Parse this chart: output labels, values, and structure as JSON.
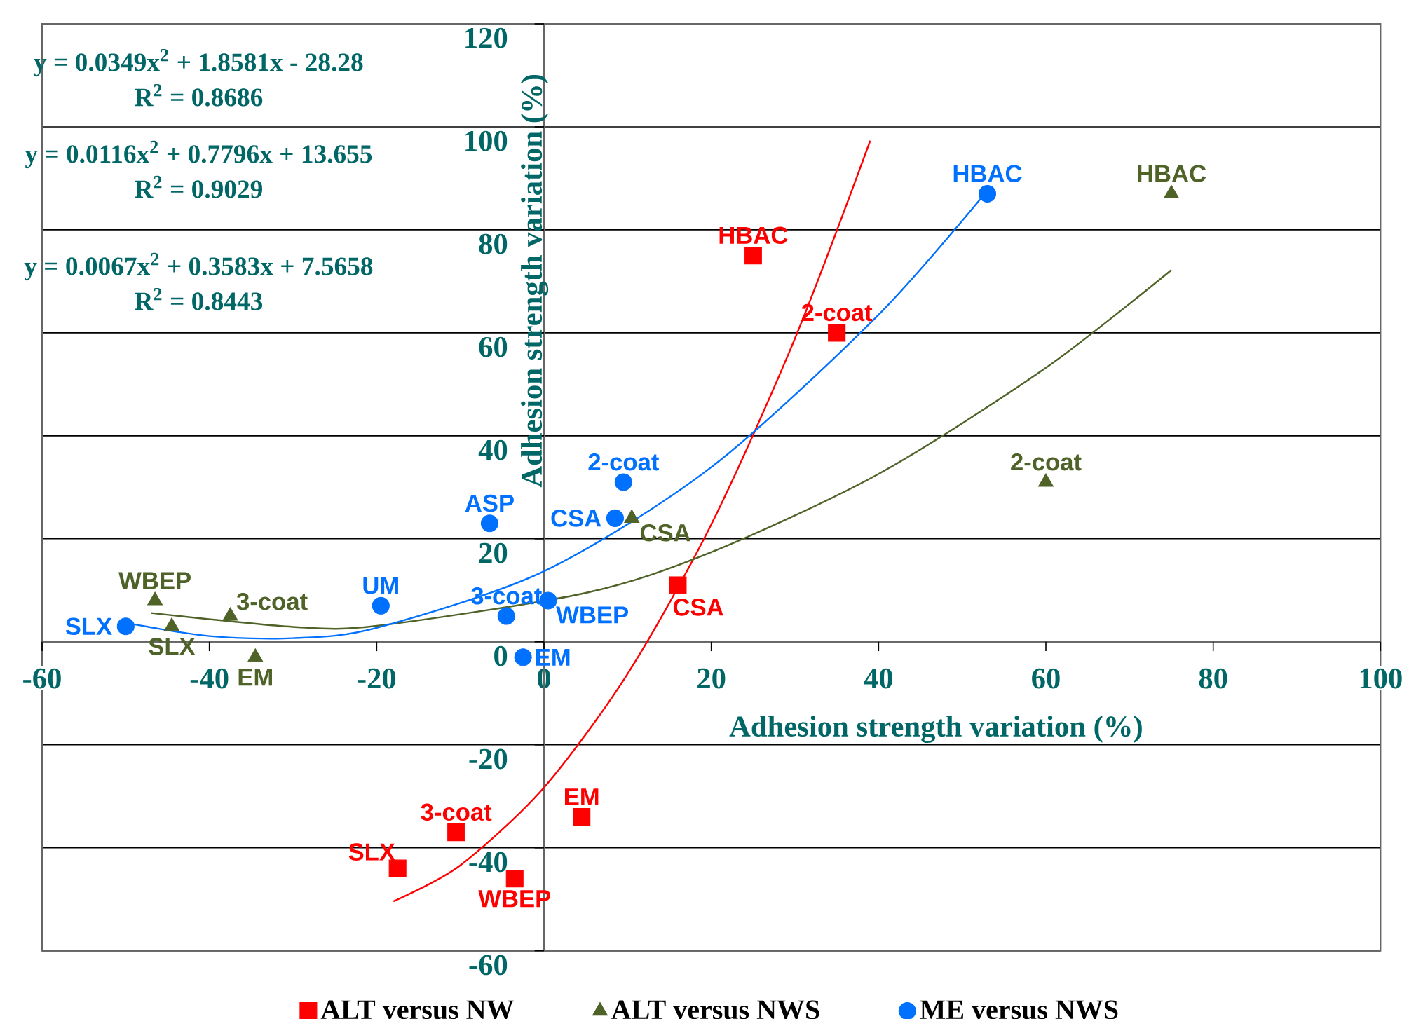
{
  "chart_data": {
    "type": "scatter",
    "xlabel": "Adhesion strength variation (%)",
    "ylabel": "Adhesion strength variation (%)",
    "xlim": [
      -60,
      100
    ],
    "ylim": [
      -60,
      120
    ],
    "xticks": [
      -60,
      -40,
      -20,
      0,
      20,
      40,
      60,
      80,
      100
    ],
    "yticks": [
      -60,
      -40,
      -20,
      0,
      20,
      40,
      60,
      80,
      100,
      120
    ],
    "grid": "y",
    "legend": "bottom",
    "series": [
      {
        "name": "ALT versus NW",
        "color": "#ff0000",
        "marker": "square",
        "x": [
          25,
          35,
          16,
          4.5,
          -10.5,
          -17.5,
          -3.5
        ],
        "values": [
          75,
          60,
          11,
          -34,
          -37,
          -44,
          -46
        ]
      },
      {
        "name": "ALT versus NWS",
        "color": "#4f6228",
        "marker": "triangle",
        "x": [
          75,
          60,
          10.5,
          -46.5,
          -37.5,
          -44.5,
          -34.5
        ],
        "values": [
          87,
          31,
          24,
          8,
          5,
          3,
          -3
        ]
      },
      {
        "name": "ME versus NWS",
        "color": "#0070ff",
        "marker": "circle",
        "x": [
          53,
          9.5,
          8.5,
          -6.5,
          -19.5,
          -4.5,
          0.5,
          -2.5,
          -50
        ],
        "values": [
          87,
          31,
          24,
          23,
          7,
          5,
          8,
          -3,
          3
        ]
      },
      {
        "type": "line",
        "color": "#ff0000",
        "marker": "none",
        "x": [
          -18,
          -10,
          0,
          10,
          20,
          30,
          39
        ],
        "values": [
          -50.4,
          -43.4,
          -28.3,
          -6.2,
          22.8,
          58.9,
          97.3
        ]
      },
      {
        "type": "line",
        "color": "#4f6228",
        "marker": "none",
        "x": [
          -47,
          -30,
          -20,
          5,
          20,
          40,
          60,
          75
        ],
        "values": [
          5.6,
          2.9,
          3.1,
          9.5,
          17.4,
          32.6,
          53.2,
          72.2
        ]
      },
      {
        "type": "line",
        "color": "#0070ff",
        "marker": "none",
        "x": [
          -50,
          -40,
          -30,
          -20,
          0,
          20,
          40,
          53
        ],
        "values": [
          3.7,
          1.1,
          0.7,
          2.7,
          13.7,
          33.9,
          63.5,
          87.6
        ]
      }
    ],
    "annotations": [
      "y = 0.0349x$^{2}$ + 1.8581x - 28.28",
      "R$^{2}$ = 0.8686",
      "y = 0.0116x$^{2}$ + 0.7796x + 13.655",
      "R$^{2}$ = 0.9029",
      "y = 0.0067x$^{2}$ + 0.3583x + 7.5658",
      "R$^{2}$ = 0.8443",
      {
        "text": "HBAC",
        "x": 25,
        "y": 75
      },
      {
        "text": "2-coat",
        "x": 35,
        "y": 60
      },
      {
        "text": "CSA",
        "x": 16,
        "y": 11
      },
      {
        "text": "EM",
        "x": 4.5,
        "y": -34
      },
      {
        "text": "3-coat",
        "x": -10.5,
        "y": -37
      },
      {
        "text": "SLX",
        "x": -17.5,
        "y": -44
      },
      {
        "text": "WBEP",
        "x": -3.5,
        "y": -46
      },
      {
        "text": "HBAC",
        "x": 75,
        "y": 87
      },
      {
        "text": "2-coat",
        "x": 60,
        "y": 31
      },
      {
        "text": "CSA",
        "x": 10.5,
        "y": 24
      },
      {
        "text": "WBEP",
        "x": -46.5,
        "y": 8
      },
      {
        "text": "3-coat",
        "x": -37.5,
        "y": 5
      },
      {
        "text": "SLX",
        "x": -44.5,
        "y": 3
      },
      {
        "text": "EM",
        "x": -34.5,
        "y": -3
      },
      {
        "text": "HBAC",
        "x": 53,
        "y": 87
      },
      {
        "text": "2-coat",
        "x": 9.5,
        "y": 31
      },
      {
        "text": "CSA",
        "x": 8.5,
        "y": 24
      },
      {
        "text": "ASP",
        "x": -6.5,
        "y": 23
      },
      {
        "text": "UM",
        "x": -19.5,
        "y": 7
      },
      {
        "text": "3-coat",
        "x": -4.5,
        "y": 5
      },
      {
        "text": "WBEP",
        "x": 0.5,
        "y": 8
      },
      {
        "text": "EM",
        "x": -2.5,
        "y": -3
      },
      {
        "text": "SLX",
        "x": -50,
        "y": 3
      }
    ]
  }
}
